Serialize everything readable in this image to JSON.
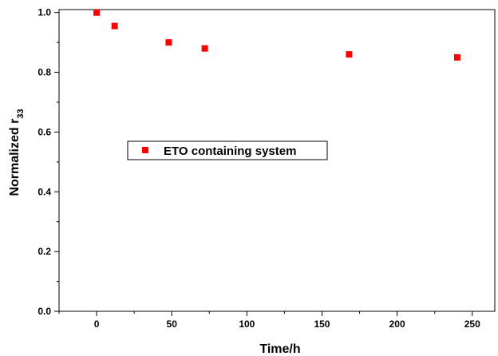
{
  "chart_data": {
    "type": "scatter",
    "xlabel": "Time/h",
    "ylabel_main": "Normalized r",
    "ylabel_sub": "33",
    "xlim": [
      -25,
      265
    ],
    "ylim": [
      0,
      1.01
    ],
    "xticks": [
      0,
      50,
      100,
      150,
      200,
      250
    ],
    "xtick_labels": [
      "0",
      "50",
      "100",
      "150",
      "200",
      "250"
    ],
    "xminor": [
      -25,
      25,
      75,
      125,
      175,
      225
    ],
    "yticks": [
      0.0,
      0.2,
      0.4,
      0.6,
      0.8,
      1.0
    ],
    "ytick_labels": [
      "0.0",
      "0.2",
      "0.4",
      "0.6",
      "0.8",
      "1.0"
    ],
    "yminor": [
      0.1,
      0.3,
      0.5,
      0.7,
      0.9
    ],
    "legend_position": "center-left",
    "series": [
      {
        "name": "ETO containing system",
        "color": "#ff0000",
        "marker": "square",
        "x": [
          0,
          12,
          48,
          72,
          168,
          240
        ],
        "y": [
          1.0,
          0.955,
          0.9,
          0.88,
          0.86,
          0.85
        ]
      }
    ]
  }
}
